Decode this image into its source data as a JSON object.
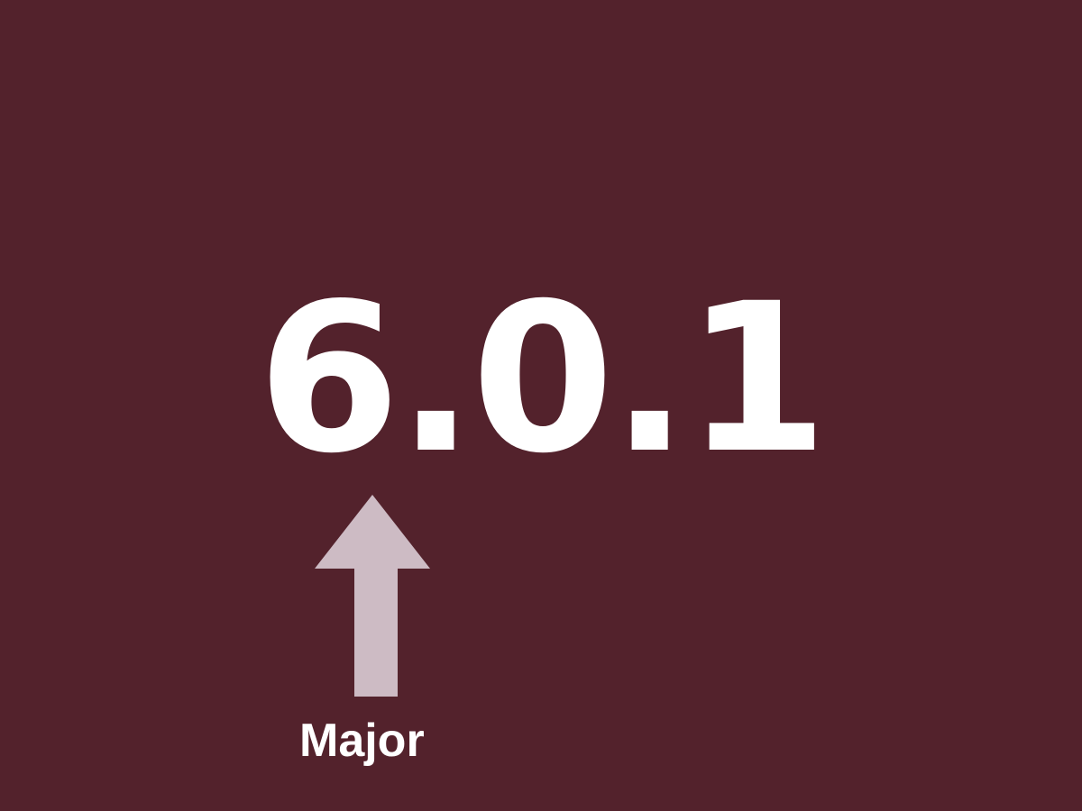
{
  "slide": {
    "version_text": "6.0.1",
    "label": "Major",
    "colors": {
      "background": "#53222c",
      "text": "#ffffff",
      "arrow": "#cdbbc4"
    },
    "arrow_icon": "up-arrow-icon"
  }
}
